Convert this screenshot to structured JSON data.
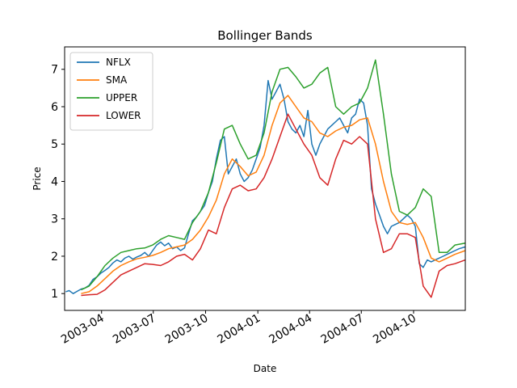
{
  "chart_data": {
    "type": "line",
    "title": "Bollinger Bands",
    "xlabel": "Date",
    "ylabel": "Price",
    "x_axis": "date",
    "xlim": [
      "2003-01-26",
      "2004-12-31"
    ],
    "ylim": [
      0.55,
      7.6
    ],
    "yticks": [
      1,
      2,
      3,
      4,
      5,
      6,
      7
    ],
    "xticks": [
      {
        "date": "2003-04-01",
        "label": "2003-04"
      },
      {
        "date": "2003-07-01",
        "label": "2003-07"
      },
      {
        "date": "2003-10-01",
        "label": "2003-10"
      },
      {
        "date": "2004-01-01",
        "label": "2004-01"
      },
      {
        "date": "2004-04-01",
        "label": "2004-04"
      },
      {
        "date": "2004-07-01",
        "label": "2004-07"
      },
      {
        "date": "2004-10-01",
        "label": "2004-10"
      }
    ],
    "grid": false,
    "legend_position": "top-left",
    "series": [
      {
        "name": "NFLX",
        "color": "#1f77b4",
        "points": [
          [
            "2003-01-28",
            1.05
          ],
          [
            "2003-02-03",
            1.08
          ],
          [
            "2003-02-10",
            1.0
          ],
          [
            "2003-02-17",
            1.06
          ],
          [
            "2003-02-24",
            1.12
          ],
          [
            "2003-03-03",
            1.15
          ],
          [
            "2003-03-10",
            1.22
          ],
          [
            "2003-03-17",
            1.38
          ],
          [
            "2003-03-24",
            1.45
          ],
          [
            "2003-03-31",
            1.55
          ],
          [
            "2003-04-07",
            1.62
          ],
          [
            "2003-04-14",
            1.7
          ],
          [
            "2003-04-21",
            1.82
          ],
          [
            "2003-04-28",
            1.9
          ],
          [
            "2003-05-05",
            1.85
          ],
          [
            "2003-05-12",
            1.95
          ],
          [
            "2003-05-19",
            2.0
          ],
          [
            "2003-05-26",
            1.92
          ],
          [
            "2003-06-02",
            1.98
          ],
          [
            "2003-06-09",
            2.02
          ],
          [
            "2003-06-16",
            2.1
          ],
          [
            "2003-06-23",
            2.0
          ],
          [
            "2003-06-30",
            2.15
          ],
          [
            "2003-07-07",
            2.3
          ],
          [
            "2003-07-14",
            2.38
          ],
          [
            "2003-07-21",
            2.28
          ],
          [
            "2003-07-28",
            2.35
          ],
          [
            "2003-08-04",
            2.2
          ],
          [
            "2003-08-11",
            2.25
          ],
          [
            "2003-08-18",
            2.15
          ],
          [
            "2003-08-25",
            2.22
          ],
          [
            "2003-09-01",
            2.6
          ],
          [
            "2003-09-08",
            2.95
          ],
          [
            "2003-09-15",
            3.05
          ],
          [
            "2003-09-22",
            3.2
          ],
          [
            "2003-09-29",
            3.35
          ],
          [
            "2003-10-06",
            3.7
          ],
          [
            "2003-10-13",
            4.0
          ],
          [
            "2003-10-20",
            4.6
          ],
          [
            "2003-10-27",
            5.1
          ],
          [
            "2003-11-03",
            5.2
          ],
          [
            "2003-11-10",
            4.2
          ],
          [
            "2003-11-17",
            4.4
          ],
          [
            "2003-11-24",
            4.6
          ],
          [
            "2003-12-01",
            4.2
          ],
          [
            "2003-12-08",
            4.0
          ],
          [
            "2003-12-15",
            4.1
          ],
          [
            "2003-12-22",
            4.3
          ],
          [
            "2003-12-29",
            4.6
          ],
          [
            "2004-01-05",
            4.9
          ],
          [
            "2004-01-12",
            5.5
          ],
          [
            "2004-01-19",
            6.7
          ],
          [
            "2004-01-26",
            6.2
          ],
          [
            "2004-02-02",
            6.4
          ],
          [
            "2004-02-09",
            6.6
          ],
          [
            "2004-02-16",
            6.2
          ],
          [
            "2004-02-23",
            5.6
          ],
          [
            "2004-03-01",
            5.4
          ],
          [
            "2004-03-08",
            5.3
          ],
          [
            "2004-03-15",
            5.5
          ],
          [
            "2004-03-22",
            5.2
          ],
          [
            "2004-03-29",
            5.9
          ],
          [
            "2004-04-05",
            5.0
          ],
          [
            "2004-04-12",
            4.7
          ],
          [
            "2004-04-19",
            5.0
          ],
          [
            "2004-04-26",
            5.2
          ],
          [
            "2004-05-03",
            5.4
          ],
          [
            "2004-05-10",
            5.5
          ],
          [
            "2004-05-17",
            5.6
          ],
          [
            "2004-05-24",
            5.7
          ],
          [
            "2004-05-31",
            5.5
          ],
          [
            "2004-06-07",
            5.3
          ],
          [
            "2004-06-14",
            5.7
          ],
          [
            "2004-06-21",
            5.8
          ],
          [
            "2004-06-28",
            6.2
          ],
          [
            "2004-07-05",
            6.1
          ],
          [
            "2004-07-12",
            5.5
          ],
          [
            "2004-07-19",
            3.8
          ],
          [
            "2004-07-26",
            3.4
          ],
          [
            "2004-08-02",
            3.1
          ],
          [
            "2004-08-09",
            2.8
          ],
          [
            "2004-08-16",
            2.6
          ],
          [
            "2004-08-23",
            2.8
          ],
          [
            "2004-08-30",
            2.85
          ],
          [
            "2004-09-06",
            2.9
          ],
          [
            "2004-09-13",
            3.0
          ],
          [
            "2004-09-20",
            3.1
          ],
          [
            "2004-09-27",
            3.0
          ],
          [
            "2004-10-04",
            2.8
          ],
          [
            "2004-10-11",
            1.8
          ],
          [
            "2004-10-18",
            1.7
          ],
          [
            "2004-10-25",
            1.9
          ],
          [
            "2004-11-01",
            1.85
          ],
          [
            "2004-11-08",
            1.9
          ],
          [
            "2004-11-15",
            1.95
          ],
          [
            "2004-11-22",
            2.0
          ],
          [
            "2004-11-29",
            2.05
          ],
          [
            "2004-12-06",
            2.1
          ],
          [
            "2004-12-13",
            2.15
          ],
          [
            "2004-12-20",
            2.2
          ],
          [
            "2004-12-31",
            2.25
          ]
        ]
      },
      {
        "name": "SMA",
        "color": "#ff7f0e",
        "points": [
          [
            "2003-02-24",
            1.0
          ],
          [
            "2003-03-10",
            1.05
          ],
          [
            "2003-03-24",
            1.2
          ],
          [
            "2003-04-07",
            1.4
          ],
          [
            "2003-04-21",
            1.6
          ],
          [
            "2003-05-05",
            1.75
          ],
          [
            "2003-05-19",
            1.85
          ],
          [
            "2003-06-02",
            1.93
          ],
          [
            "2003-06-16",
            1.97
          ],
          [
            "2003-06-30",
            2.02
          ],
          [
            "2003-07-14",
            2.1
          ],
          [
            "2003-07-28",
            2.2
          ],
          [
            "2003-08-11",
            2.25
          ],
          [
            "2003-08-25",
            2.3
          ],
          [
            "2003-09-08",
            2.45
          ],
          [
            "2003-09-22",
            2.7
          ],
          [
            "2003-10-06",
            3.05
          ],
          [
            "2003-10-20",
            3.5
          ],
          [
            "2003-11-03",
            4.2
          ],
          [
            "2003-11-17",
            4.6
          ],
          [
            "2003-12-01",
            4.4
          ],
          [
            "2003-12-15",
            4.15
          ],
          [
            "2003-12-29",
            4.25
          ],
          [
            "2004-01-12",
            4.7
          ],
          [
            "2004-01-26",
            5.5
          ],
          [
            "2004-02-09",
            6.1
          ],
          [
            "2004-02-23",
            6.3
          ],
          [
            "2004-03-08",
            6.0
          ],
          [
            "2004-03-22",
            5.7
          ],
          [
            "2004-04-05",
            5.6
          ],
          [
            "2004-04-19",
            5.3
          ],
          [
            "2004-05-03",
            5.2
          ],
          [
            "2004-05-17",
            5.35
          ],
          [
            "2004-05-31",
            5.45
          ],
          [
            "2004-06-14",
            5.5
          ],
          [
            "2004-06-28",
            5.65
          ],
          [
            "2004-07-12",
            5.7
          ],
          [
            "2004-07-26",
            5.0
          ],
          [
            "2004-08-09",
            4.0
          ],
          [
            "2004-08-23",
            3.2
          ],
          [
            "2004-09-06",
            2.9
          ],
          [
            "2004-09-20",
            2.85
          ],
          [
            "2004-10-04",
            2.9
          ],
          [
            "2004-10-18",
            2.5
          ],
          [
            "2004-11-01",
            1.95
          ],
          [
            "2004-11-15",
            1.85
          ],
          [
            "2004-11-29",
            1.95
          ],
          [
            "2004-12-13",
            2.05
          ],
          [
            "2004-12-31",
            2.15
          ]
        ]
      },
      {
        "name": "UPPER",
        "color": "#2ca02c",
        "points": [
          [
            "2003-02-24",
            1.1
          ],
          [
            "2003-03-10",
            1.2
          ],
          [
            "2003-03-24",
            1.45
          ],
          [
            "2003-04-07",
            1.75
          ],
          [
            "2003-04-21",
            1.95
          ],
          [
            "2003-05-05",
            2.1
          ],
          [
            "2003-05-19",
            2.15
          ],
          [
            "2003-06-02",
            2.2
          ],
          [
            "2003-06-16",
            2.22
          ],
          [
            "2003-06-30",
            2.3
          ],
          [
            "2003-07-14",
            2.45
          ],
          [
            "2003-07-28",
            2.55
          ],
          [
            "2003-08-11",
            2.5
          ],
          [
            "2003-08-25",
            2.45
          ],
          [
            "2003-09-08",
            2.9
          ],
          [
            "2003-09-22",
            3.2
          ],
          [
            "2003-10-06",
            3.7
          ],
          [
            "2003-10-20",
            4.5
          ],
          [
            "2003-11-03",
            5.4
          ],
          [
            "2003-11-17",
            5.5
          ],
          [
            "2003-12-01",
            5.0
          ],
          [
            "2003-12-15",
            4.6
          ],
          [
            "2003-12-29",
            4.7
          ],
          [
            "2004-01-12",
            5.3
          ],
          [
            "2004-01-26",
            6.4
          ],
          [
            "2004-02-09",
            7.0
          ],
          [
            "2004-02-23",
            7.05
          ],
          [
            "2004-03-08",
            6.8
          ],
          [
            "2004-03-22",
            6.5
          ],
          [
            "2004-04-05",
            6.6
          ],
          [
            "2004-04-19",
            6.9
          ],
          [
            "2004-05-03",
            7.05
          ],
          [
            "2004-05-17",
            6.0
          ],
          [
            "2004-05-31",
            5.8
          ],
          [
            "2004-06-14",
            6.0
          ],
          [
            "2004-06-28",
            6.1
          ],
          [
            "2004-07-12",
            6.5
          ],
          [
            "2004-07-26",
            7.25
          ],
          [
            "2004-08-09",
            5.8
          ],
          [
            "2004-08-23",
            4.2
          ],
          [
            "2004-09-06",
            3.2
          ],
          [
            "2004-09-20",
            3.1
          ],
          [
            "2004-10-04",
            3.3
          ],
          [
            "2004-10-18",
            3.8
          ],
          [
            "2004-11-01",
            3.6
          ],
          [
            "2004-11-15",
            2.1
          ],
          [
            "2004-11-29",
            2.1
          ],
          [
            "2004-12-13",
            2.3
          ],
          [
            "2004-12-31",
            2.35
          ]
        ]
      },
      {
        "name": "LOWER",
        "color": "#d62728",
        "points": [
          [
            "2003-02-24",
            0.95
          ],
          [
            "2003-03-10",
            0.97
          ],
          [
            "2003-03-24",
            0.98
          ],
          [
            "2003-04-07",
            1.1
          ],
          [
            "2003-04-21",
            1.3
          ],
          [
            "2003-05-05",
            1.5
          ],
          [
            "2003-05-19",
            1.6
          ],
          [
            "2003-06-02",
            1.7
          ],
          [
            "2003-06-16",
            1.8
          ],
          [
            "2003-06-30",
            1.78
          ],
          [
            "2003-07-14",
            1.75
          ],
          [
            "2003-07-28",
            1.85
          ],
          [
            "2003-08-11",
            2.0
          ],
          [
            "2003-08-25",
            2.05
          ],
          [
            "2003-09-08",
            1.9
          ],
          [
            "2003-09-22",
            2.2
          ],
          [
            "2003-10-06",
            2.7
          ],
          [
            "2003-10-20",
            2.6
          ],
          [
            "2003-11-03",
            3.3
          ],
          [
            "2003-11-17",
            3.8
          ],
          [
            "2003-12-01",
            3.9
          ],
          [
            "2003-12-15",
            3.75
          ],
          [
            "2003-12-29",
            3.8
          ],
          [
            "2004-01-12",
            4.1
          ],
          [
            "2004-01-26",
            4.6
          ],
          [
            "2004-02-09",
            5.2
          ],
          [
            "2004-02-23",
            5.8
          ],
          [
            "2004-03-08",
            5.4
          ],
          [
            "2004-03-22",
            5.0
          ],
          [
            "2004-04-05",
            4.7
          ],
          [
            "2004-04-19",
            4.1
          ],
          [
            "2004-05-03",
            3.9
          ],
          [
            "2004-05-17",
            4.6
          ],
          [
            "2004-05-31",
            5.1
          ],
          [
            "2004-06-14",
            5.0
          ],
          [
            "2004-06-28",
            5.2
          ],
          [
            "2004-07-12",
            5.0
          ],
          [
            "2004-07-26",
            3.0
          ],
          [
            "2004-08-09",
            2.1
          ],
          [
            "2004-08-23",
            2.2
          ],
          [
            "2004-09-06",
            2.6
          ],
          [
            "2004-09-20",
            2.6
          ],
          [
            "2004-10-04",
            2.5
          ],
          [
            "2004-10-18",
            1.2
          ],
          [
            "2004-11-01",
            0.9
          ],
          [
            "2004-11-15",
            1.6
          ],
          [
            "2004-11-29",
            1.75
          ],
          [
            "2004-12-13",
            1.8
          ],
          [
            "2004-12-31",
            1.9
          ]
        ]
      }
    ]
  }
}
